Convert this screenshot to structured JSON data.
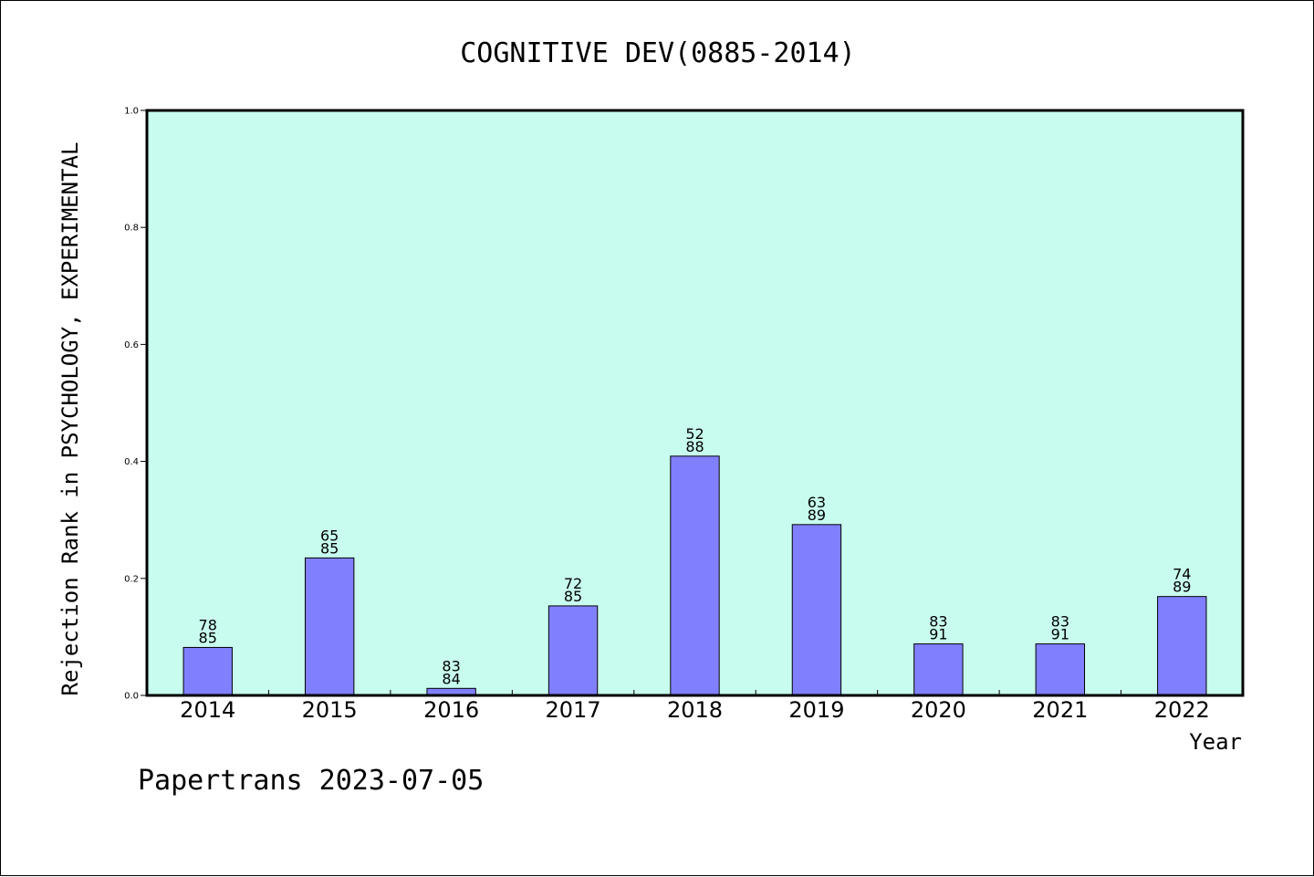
{
  "chart_data": {
    "type": "bar",
    "title": "COGNITIVE DEV(0885-2014)",
    "xlabel": "Year",
    "ylabel": "Rejection Rank in PSYCHOLOGY, EXPERIMENTAL",
    "ylim": [
      0,
      1.0
    ],
    "yticks": [
      "0.0",
      "0.2",
      "0.4",
      "0.6",
      "0.8",
      "1.0"
    ],
    "categories": [
      "2014",
      "2015",
      "2016",
      "2017",
      "2018",
      "2019",
      "2020",
      "2021",
      "2022"
    ],
    "values": [
      0.082,
      0.235,
      0.012,
      0.153,
      0.409,
      0.292,
      0.088,
      0.088,
      0.169
    ],
    "label_top": [
      "78",
      "65",
      "83",
      "72",
      "52",
      "63",
      "83",
      "83",
      "74"
    ],
    "label_bottom": [
      "85",
      "85",
      "84",
      "85",
      "88",
      "89",
      "91",
      "91",
      "89"
    ],
    "grid": false,
    "colors": {
      "plot_background": "#c8fcee",
      "bar_fill": "#8080ff",
      "bar_stroke": "#000000"
    }
  },
  "footer": {
    "text": "Papertrans 2023-07-05"
  }
}
